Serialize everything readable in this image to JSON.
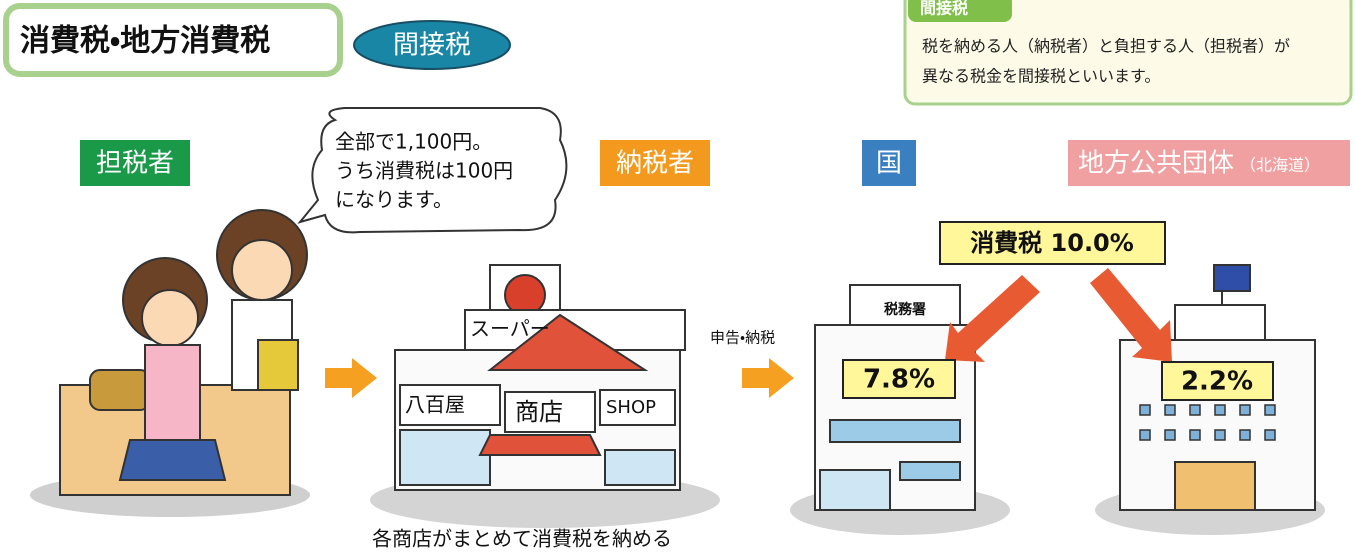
{
  "header": {
    "title": "消費税・地方消費税",
    "badge": "間接税"
  },
  "info_box": {
    "label": "間接税",
    "lines": [
      "税を納める人（納税者）と負担する人（担税者）が",
      "異なる税金を間接税といいます。"
    ]
  },
  "roles": [
    {
      "label": "担税者"
    },
    {
      "label": "納税者"
    },
    {
      "label": "国"
    },
    {
      "label": "地方公共団体",
      "note": "（北海道）"
    }
  ],
  "speech_bubble": {
    "lines": [
      "全部で1,100円。",
      "うち消費税は100円",
      "になります。"
    ]
  },
  "tax_rate": "消費税 10.0%",
  "national_share": "7.8%",
  "local_share": "2.2%",
  "building_sign": "税務署",
  "shop_signs": [
    "スーパー",
    "八百屋",
    "商店",
    "SHOP"
  ],
  "flow_label": "申告・納税",
  "caption": "各商店がまとめて消費税を納める"
}
